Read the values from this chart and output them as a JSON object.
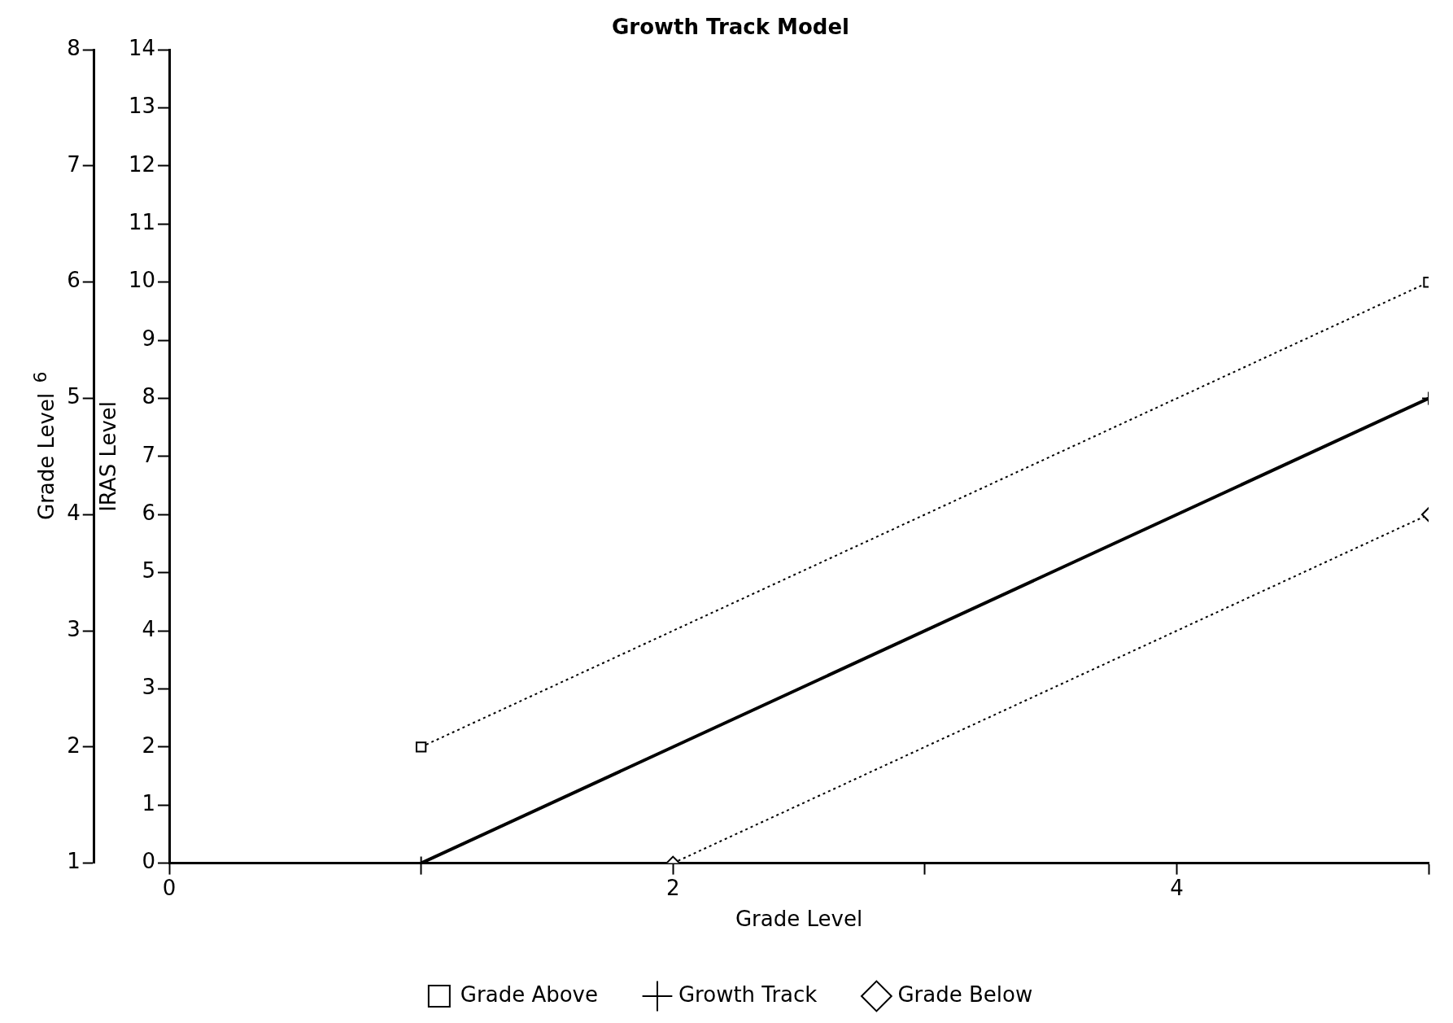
{
  "chart_data": {
    "type": "line",
    "title": "Growth Track Model",
    "xlabel": "Grade Level",
    "ylabel": "IRAS Level",
    "y2label": "Grade Level",
    "annotations": [
      "6"
    ],
    "xlim": [
      0,
      5
    ],
    "xticks": [
      0,
      {
        "value": 1,
        "label": null
      },
      2,
      {
        "value": 3,
        "label": null
      },
      4,
      {
        "value": 5,
        "label": null
      }
    ],
    "ylim": [
      0,
      14
    ],
    "yticks": [
      0,
      1,
      2,
      3,
      4,
      5,
      6,
      7,
      8,
      9,
      10,
      11,
      12,
      13,
      14
    ],
    "y2lim": [
      1,
      8
    ],
    "y2ticks": [
      1,
      2,
      3,
      4,
      5,
      6,
      7,
      8
    ],
    "grid": false,
    "legend": "bottom",
    "series": [
      {
        "name": "Grade Above",
        "color": "#000000",
        "x": [
          1,
          5
        ],
        "values": [
          2,
          10
        ],
        "marker": "square",
        "line_style": "dotted"
      },
      {
        "name": "Growth Track",
        "color": "#000000",
        "x": [
          1,
          5
        ],
        "values": [
          0,
          8
        ],
        "marker": "cross",
        "line_style": "solid"
      },
      {
        "name": "Grade Below",
        "color": "#000000",
        "x": [
          2,
          5
        ],
        "values": [
          0,
          6
        ],
        "marker": "diamond",
        "line_style": "dotted"
      }
    ]
  }
}
